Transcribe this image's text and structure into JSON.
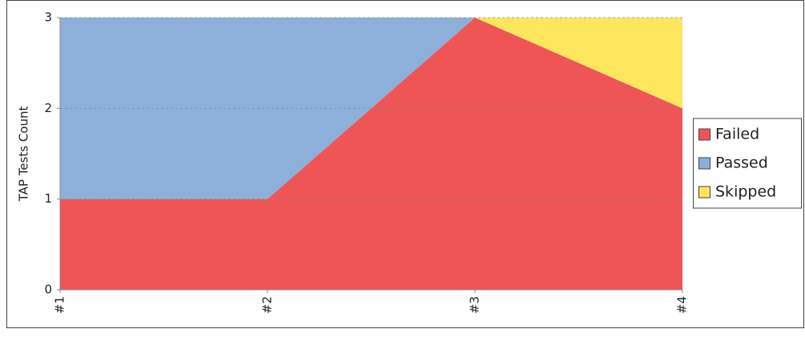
{
  "chart_data": {
    "type": "stacked-area",
    "y_label": "TAP Tests Count",
    "categories": [
      "#1",
      "#2",
      "#3",
      "#4"
    ],
    "series": [
      {
        "name": "Failed",
        "color": "#ef5555",
        "values": [
          1,
          1,
          3,
          2
        ]
      },
      {
        "name": "Passed",
        "color": "#8cb0da",
        "values": [
          2,
          2,
          0,
          0
        ]
      },
      {
        "name": "Skipped",
        "color": "#fbe65e",
        "values": [
          0,
          0,
          0,
          1
        ]
      }
    ],
    "ylim": [
      0,
      3
    ],
    "yticks": [
      0,
      1,
      2,
      3
    ],
    "grid": true,
    "legend": "right"
  }
}
